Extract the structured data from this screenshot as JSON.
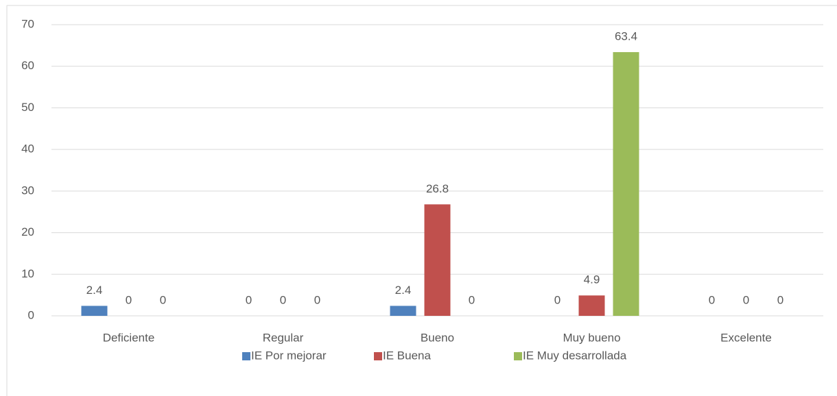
{
  "chart_data": {
    "type": "bar",
    "categories": [
      "Deficiente",
      "Regular",
      "Bueno",
      "Muy bueno",
      "Excelente"
    ],
    "series": [
      {
        "name": "IE Por mejorar",
        "color": "#4f81bd",
        "values": [
          2.4,
          0,
          2.4,
          0,
          0
        ]
      },
      {
        "name": "IE Buena",
        "color": "#c0504d",
        "values": [
          0,
          0,
          26.8,
          4.9,
          0
        ]
      },
      {
        "name": "IE Muy desarrollada",
        "color": "#9bbb59",
        "values": [
          0,
          0,
          0,
          63.4,
          0
        ]
      }
    ],
    "ylim": [
      0,
      70
    ],
    "yticks": [
      0,
      10,
      20,
      30,
      40,
      50,
      60,
      70
    ],
    "grid": true,
    "legend": "bottom"
  }
}
